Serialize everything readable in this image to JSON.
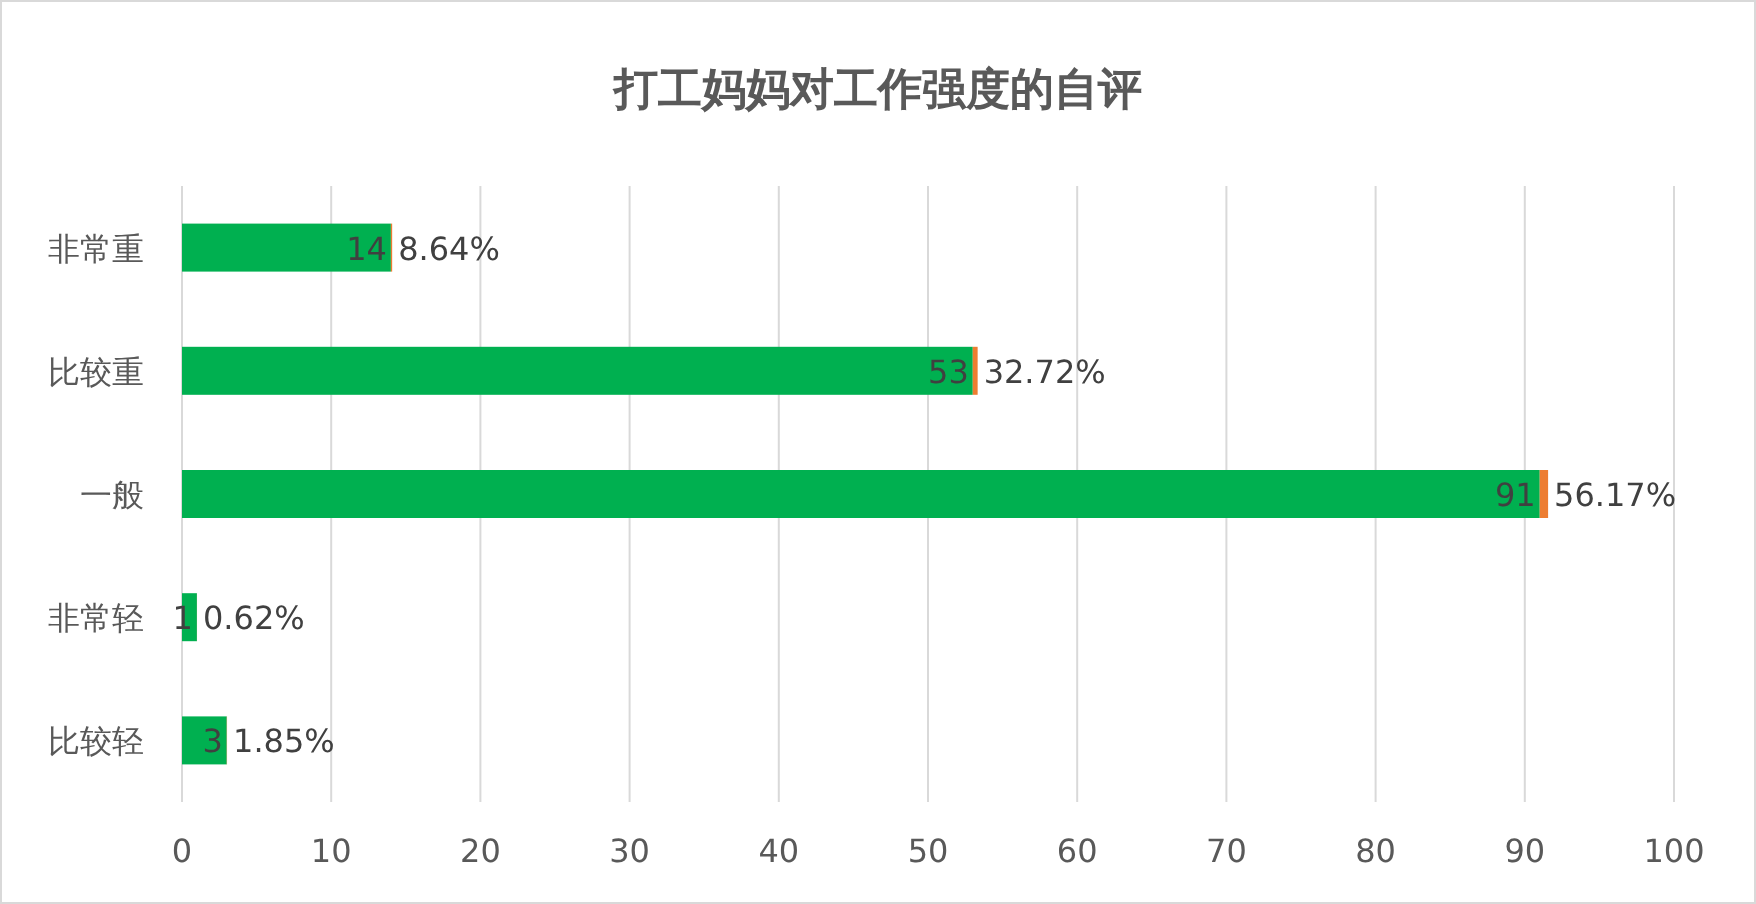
{
  "chart_data": {
    "type": "bar",
    "orientation": "horizontal",
    "stacked": true,
    "title": "打工妈妈对工作强度的自评",
    "categories": [
      "非常重",
      "比较重",
      "一般",
      "非常轻",
      "比较轻"
    ],
    "series": [
      {
        "color": "#00b050",
        "values": [
          14,
          53,
          91,
          1,
          3
        ],
        "value_labels": [
          "14",
          "53",
          "91",
          "1",
          "3"
        ]
      },
      {
        "color": "#ed7d31",
        "values": [
          0.0864,
          0.3272,
          0.5617,
          0.0062,
          0.0185
        ],
        "value_labels": [
          "8.64%",
          "32.72%",
          "56.17%",
          "0.62%",
          "1.85%"
        ]
      }
    ],
    "xlim": [
      0,
      100
    ],
    "xticks": [
      0,
      10,
      20,
      30,
      40,
      50,
      60,
      70,
      80,
      90,
      100
    ],
    "grid": "x"
  }
}
